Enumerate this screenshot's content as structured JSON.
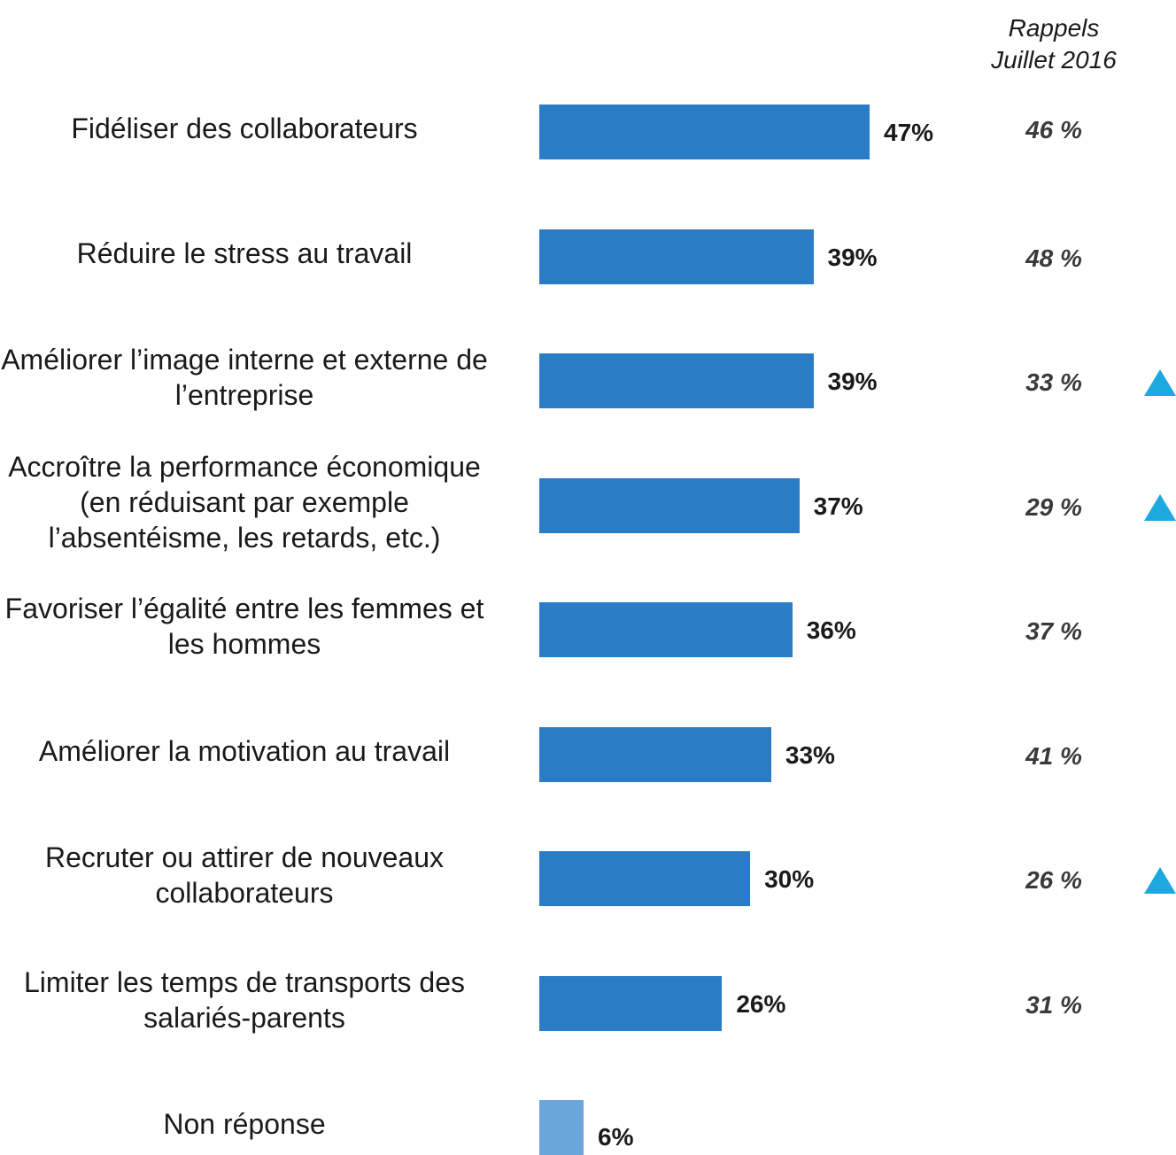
{
  "chart_data": {
    "type": "bar",
    "orientation": "horizontal",
    "recall_header": [
      "Rappels",
      "Juillet 2016"
    ],
    "colors": {
      "bar": "#2a7cc7",
      "bar_no_answer": "#6aa6da",
      "up_arrow": "#1da8e0"
    },
    "items": [
      {
        "label": [
          "Fidéliser des collaborateurs"
        ],
        "value": 47,
        "value_label": "47%",
        "recall": "46 %",
        "up": false,
        "no_answer": false
      },
      {
        "label": [
          "Réduire le stress au travail"
        ],
        "value": 39,
        "value_label": "39%",
        "recall": "48 %",
        "up": false,
        "no_answer": false
      },
      {
        "label": [
          "Améliorer l’image interne et externe de",
          "l’entreprise"
        ],
        "value": 39,
        "value_label": "39%",
        "recall": "33 %",
        "up": true,
        "no_answer": false
      },
      {
        "label": [
          "Accroître la performance économique",
          "(en réduisant par exemple",
          "l’absentéisme, les retards, etc.)"
        ],
        "value": 37,
        "value_label": "37%",
        "recall": "29 %",
        "up": true,
        "no_answer": false
      },
      {
        "label": [
          "Favoriser l’égalité entre les femmes et",
          "les hommes"
        ],
        "value": 36,
        "value_label": "36%",
        "recall": "37 %",
        "up": false,
        "no_answer": false
      },
      {
        "label": [
          "Améliorer la motivation au travail"
        ],
        "value": 33,
        "value_label": "33%",
        "recall": "41 %",
        "up": false,
        "no_answer": false
      },
      {
        "label": [
          "Recruter ou attirer de nouveaux",
          "collaborateurs"
        ],
        "value": 30,
        "value_label": "30%",
        "recall": "26 %",
        "up": true,
        "no_answer": false
      },
      {
        "label": [
          "Limiter les temps de transports des",
          "salariés-parents"
        ],
        "value": 26,
        "value_label": "26%",
        "recall": "31 %",
        "up": false,
        "no_answer": false
      },
      {
        "label": [
          "Non réponse"
        ],
        "value": 6,
        "value_label": "6%",
        "recall": "",
        "up": false,
        "no_answer": true
      }
    ]
  }
}
